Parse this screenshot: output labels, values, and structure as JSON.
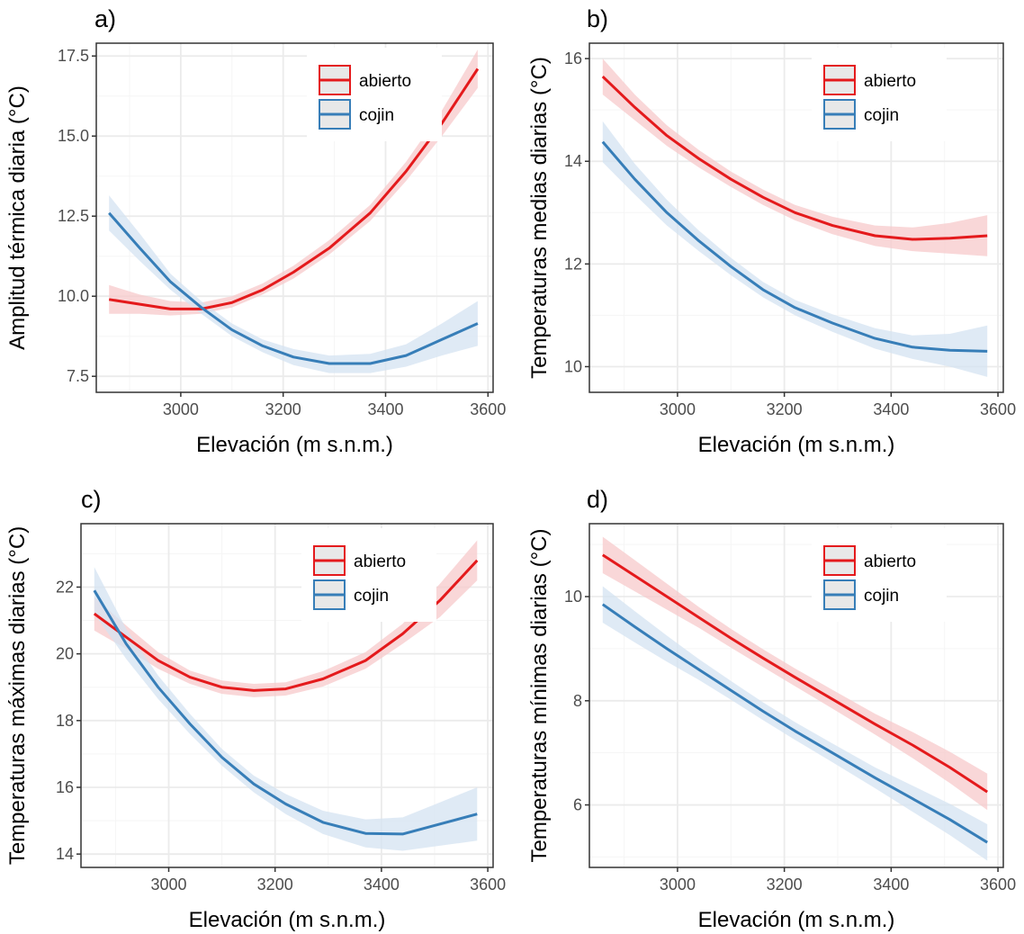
{
  "colors": {
    "abierto": "#e41a1c",
    "cojin": "#377eb8",
    "abierto_band": "#f7c9cb",
    "cojin_band": "#d4e3f1",
    "grid_major": "#ebebeb",
    "grid_minor": "#f5f5f5",
    "panel_border": "#333333"
  },
  "legend": {
    "items": [
      "abierto",
      "cojin"
    ]
  },
  "chart_data": [
    {
      "type": "line",
      "tag": "a)",
      "xlabel": "Elevación (m s.n.m.)",
      "ylabel": "Amplitud térmica diaria (°C)",
      "xlim": [
        2835,
        3610
      ],
      "ylim": [
        7.0,
        17.9
      ],
      "xticks": [
        3000,
        3200,
        3400,
        3600
      ],
      "xtick_labels": [
        "3000",
        "3200",
        "3400",
        "3600"
      ],
      "yticks": [
        7.5,
        10.0,
        12.5,
        15.0,
        17.5
      ],
      "ytick_labels": [
        "7.5",
        "10.0",
        "12.5",
        "15.0",
        "17.5"
      ],
      "legend_position": "top-right",
      "grid": true,
      "x": [
        2860,
        2920,
        2980,
        3040,
        3100,
        3160,
        3220,
        3290,
        3370,
        3440,
        3510,
        3580
      ],
      "series": [
        {
          "name": "abierto",
          "values": [
            9.9,
            9.75,
            9.6,
            9.6,
            9.8,
            10.2,
            10.75,
            11.5,
            12.6,
            13.9,
            15.4,
            17.1
          ],
          "lower": [
            9.45,
            9.45,
            9.4,
            9.45,
            9.65,
            10.05,
            10.55,
            11.3,
            12.35,
            13.6,
            15.0,
            16.5
          ],
          "upper": [
            10.35,
            10.05,
            9.85,
            9.8,
            10.0,
            10.4,
            10.95,
            11.75,
            12.85,
            14.2,
            15.8,
            17.7
          ]
        },
        {
          "name": "cojin",
          "values": [
            12.6,
            11.5,
            10.45,
            9.65,
            8.95,
            8.45,
            8.1,
            7.9,
            7.9,
            8.15,
            8.65,
            9.15
          ],
          "lower": [
            12.05,
            11.1,
            10.2,
            9.45,
            8.75,
            8.25,
            7.85,
            7.6,
            7.6,
            7.8,
            8.15,
            8.45
          ],
          "upper": [
            13.15,
            11.95,
            10.7,
            9.85,
            9.15,
            8.65,
            8.35,
            8.15,
            8.2,
            8.5,
            9.15,
            9.85
          ]
        }
      ]
    },
    {
      "type": "line",
      "tag": "b)",
      "xlabel": "Elevación (m s.n.m.)",
      "ylabel": "Temperaturas medias diarias (°C)",
      "xlim": [
        2835,
        3610
      ],
      "ylim": [
        9.5,
        16.3
      ],
      "xticks": [
        3000,
        3200,
        3400,
        3600
      ],
      "xtick_labels": [
        "3000",
        "3200",
        "3400",
        "3600"
      ],
      "yticks": [
        10,
        12,
        14,
        16
      ],
      "ytick_labels": [
        "10",
        "12",
        "14",
        "16"
      ],
      "legend_position": "top-right",
      "grid": true,
      "x": [
        2860,
        2920,
        2980,
        3040,
        3100,
        3160,
        3220,
        3290,
        3370,
        3440,
        3510,
        3580
      ],
      "series": [
        {
          "name": "abierto",
          "values": [
            15.65,
            15.05,
            14.5,
            14.05,
            13.65,
            13.3,
            13.0,
            12.75,
            12.55,
            12.48,
            12.5,
            12.55
          ],
          "lower": [
            15.3,
            14.8,
            14.3,
            13.88,
            13.5,
            13.15,
            12.85,
            12.58,
            12.35,
            12.25,
            12.2,
            12.15
          ],
          "upper": [
            16.0,
            15.3,
            14.7,
            14.22,
            13.8,
            13.45,
            13.15,
            12.92,
            12.75,
            12.71,
            12.8,
            12.95
          ]
        },
        {
          "name": "cojin",
          "values": [
            14.38,
            13.65,
            13.0,
            12.45,
            11.95,
            11.5,
            11.15,
            10.85,
            10.55,
            10.38,
            10.32,
            10.3
          ],
          "lower": [
            13.98,
            13.35,
            12.75,
            12.25,
            11.78,
            11.35,
            11.0,
            10.68,
            10.35,
            10.15,
            10.0,
            9.8
          ],
          "upper": [
            14.78,
            13.95,
            13.25,
            12.65,
            12.12,
            11.65,
            11.3,
            11.02,
            10.75,
            10.61,
            10.64,
            10.8
          ]
        }
      ]
    },
    {
      "type": "line",
      "tag": "c)",
      "xlabel": "Elevación (m s.n.m.)",
      "ylabel": "Temperaturas máximas diarias (°C)",
      "xlim": [
        2835,
        3610
      ],
      "ylim": [
        13.6,
        23.9
      ],
      "xticks": [
        3000,
        3200,
        3400,
        3600
      ],
      "xtick_labels": [
        "3000",
        "3200",
        "3400",
        "3600"
      ],
      "yticks": [
        14,
        16,
        18,
        20,
        22
      ],
      "ytick_labels": [
        "14",
        "16",
        "18",
        "20",
        "22"
      ],
      "legend_position": "top-right",
      "grid": true,
      "x": [
        2860,
        2920,
        2980,
        3040,
        3100,
        3160,
        3220,
        3290,
        3370,
        3440,
        3510,
        3580
      ],
      "series": [
        {
          "name": "abierto",
          "values": [
            21.2,
            20.5,
            19.8,
            19.3,
            19.0,
            18.9,
            18.95,
            19.25,
            19.8,
            20.6,
            21.6,
            22.8
          ],
          "lower": [
            20.7,
            20.15,
            19.55,
            19.1,
            18.8,
            18.7,
            18.75,
            19.02,
            19.55,
            20.3,
            21.1,
            22.2
          ],
          "upper": [
            21.7,
            20.85,
            20.05,
            19.5,
            19.2,
            19.1,
            19.15,
            19.48,
            20.05,
            20.9,
            22.1,
            23.4
          ]
        },
        {
          "name": "cojin",
          "values": [
            21.9,
            20.3,
            19.0,
            17.9,
            16.9,
            16.1,
            15.5,
            14.95,
            14.62,
            14.6,
            14.9,
            15.2
          ],
          "lower": [
            21.2,
            19.85,
            18.65,
            17.6,
            16.65,
            15.85,
            15.2,
            14.6,
            14.2,
            14.1,
            14.25,
            14.4
          ],
          "upper": [
            22.6,
            20.75,
            19.35,
            18.2,
            17.15,
            16.35,
            15.8,
            15.3,
            15.04,
            15.1,
            15.55,
            16.0
          ]
        }
      ]
    },
    {
      "type": "line",
      "tag": "d)",
      "xlabel": "Elevación (m s.n.m.)",
      "ylabel": "Temperaturas mínimas diarias (°C)",
      "xlim": [
        2835,
        3610
      ],
      "ylim": [
        4.8,
        11.4
      ],
      "xticks": [
        3000,
        3200,
        3400,
        3600
      ],
      "xtick_labels": [
        "3000",
        "3200",
        "3400",
        "3600"
      ],
      "yticks": [
        6,
        8,
        10
      ],
      "ytick_labels": [
        "6",
        "8",
        "10"
      ],
      "legend_position": "top-right",
      "grid": true,
      "x": [
        2860,
        2920,
        2980,
        3040,
        3100,
        3160,
        3220,
        3290,
        3370,
        3440,
        3510,
        3580
      ],
      "series": [
        {
          "name": "abierto",
          "values": [
            10.8,
            10.4,
            10.0,
            9.6,
            9.2,
            8.82,
            8.45,
            8.03,
            7.55,
            7.15,
            6.72,
            6.25
          ],
          "lower": [
            10.45,
            10.1,
            9.75,
            9.4,
            9.02,
            8.65,
            8.28,
            7.85,
            7.35,
            6.9,
            6.42,
            5.9
          ],
          "upper": [
            11.15,
            10.7,
            10.25,
            9.8,
            9.38,
            8.99,
            8.62,
            8.21,
            7.75,
            7.4,
            7.02,
            6.6
          ]
        },
        {
          "name": "cojin",
          "values": [
            9.85,
            9.42,
            9.0,
            8.6,
            8.2,
            7.8,
            7.42,
            7.0,
            6.52,
            6.12,
            5.72,
            5.28
          ],
          "lower": [
            9.5,
            9.12,
            8.75,
            8.4,
            8.02,
            7.63,
            7.25,
            6.82,
            6.32,
            5.87,
            5.42,
            4.93
          ],
          "upper": [
            10.2,
            9.72,
            9.25,
            8.8,
            8.38,
            7.97,
            7.59,
            7.18,
            6.72,
            6.37,
            6.02,
            5.63
          ]
        }
      ]
    }
  ]
}
